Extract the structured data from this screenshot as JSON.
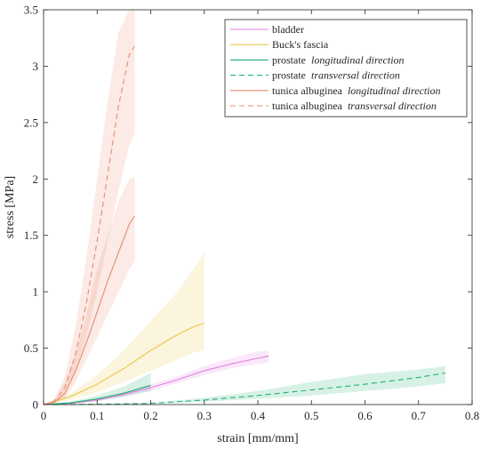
{
  "chart_data": {
    "type": "line",
    "title": "",
    "xlabel": "strain [mm/mm]",
    "ylabel": "stress [MPa]",
    "xlim": [
      0,
      0.8
    ],
    "ylim": [
      0,
      3.5
    ],
    "x_ticks": [
      "0",
      "0.1",
      "0.2",
      "0.3",
      "0.4",
      "0.5",
      "0.6",
      "0.7",
      "0.8"
    ],
    "y_ticks": [
      "0",
      "0.5",
      "1",
      "1.5",
      "2",
      "2.5",
      "3",
      "3.5"
    ],
    "grid": false,
    "legend_position": "top-right",
    "series": [
      {
        "name": "bladder",
        "name_main": "bladder",
        "name_italic": "",
        "color": "#e37fe3",
        "dash": "solid",
        "x": [
          0,
          0.05,
          0.1,
          0.15,
          0.2,
          0.25,
          0.3,
          0.35,
          0.4,
          0.42
        ],
        "y": [
          0,
          0.01,
          0.04,
          0.09,
          0.15,
          0.22,
          0.3,
          0.36,
          0.41,
          0.43
        ],
        "band_lower": [
          0,
          0.005,
          0.03,
          0.07,
          0.12,
          0.19,
          0.26,
          0.32,
          0.36,
          0.37
        ],
        "band_upper": [
          0,
          0.015,
          0.05,
          0.11,
          0.18,
          0.25,
          0.34,
          0.41,
          0.47,
          0.48
        ]
      },
      {
        "name": "Buck's fascia",
        "name_main": "Buck's fascia",
        "name_italic": "",
        "color": "#e9c744",
        "dash": "solid",
        "x": [
          0,
          0.05,
          0.1,
          0.15,
          0.2,
          0.25,
          0.28,
          0.3
        ],
        "y": [
          0,
          0.07,
          0.18,
          0.32,
          0.48,
          0.62,
          0.69,
          0.72
        ],
        "band_lower": [
          0,
          0.04,
          0.11,
          0.2,
          0.3,
          0.4,
          0.46,
          0.48
        ],
        "band_upper": [
          0,
          0.1,
          0.26,
          0.48,
          0.74,
          1.0,
          1.2,
          1.35
        ]
      },
      {
        "name": "prostate longitudinal direction",
        "name_main": "prostate",
        "name_italic": "longitudinal direction",
        "color": "#21b072",
        "dash": "solid",
        "x": [
          0,
          0.05,
          0.1,
          0.15,
          0.2
        ],
        "y": [
          0,
          0.015,
          0.05,
          0.1,
          0.17
        ],
        "band_lower": [
          0,
          0.005,
          0.03,
          0.07,
          0.12
        ],
        "band_upper": [
          0,
          0.025,
          0.08,
          0.16,
          0.28
        ]
      },
      {
        "name": "prostate transversal direction",
        "name_main": "prostate",
        "name_italic": "transversal direction",
        "color": "#21b072",
        "dash": "dashed",
        "x": [
          0,
          0.1,
          0.2,
          0.3,
          0.4,
          0.5,
          0.6,
          0.7,
          0.75
        ],
        "y": [
          0,
          0.003,
          0.01,
          0.04,
          0.08,
          0.13,
          0.18,
          0.24,
          0.28
        ],
        "band_lower": [
          0,
          0.002,
          0.006,
          0.025,
          0.05,
          0.08,
          0.12,
          0.16,
          0.19
        ],
        "band_upper": [
          0,
          0.005,
          0.015,
          0.06,
          0.12,
          0.2,
          0.27,
          0.31,
          0.34
        ]
      },
      {
        "name": "tunica albuginea longitudinal direction",
        "name_main": "tunica albuginea",
        "name_italic": "longitudinal direction",
        "color": "#e88b6f",
        "dash": "solid",
        "x": [
          0,
          0.02,
          0.04,
          0.06,
          0.08,
          0.1,
          0.12,
          0.14,
          0.16,
          0.17
        ],
        "y": [
          0,
          0.02,
          0.1,
          0.3,
          0.55,
          0.82,
          1.1,
          1.35,
          1.6,
          1.67
        ],
        "band_lower": [
          0,
          0.01,
          0.05,
          0.2,
          0.4,
          0.6,
          0.8,
          1.0,
          1.2,
          1.27
        ],
        "band_upper": [
          0,
          0.03,
          0.2,
          0.45,
          0.8,
          1.2,
          1.5,
          1.8,
          2.0,
          2.02
        ]
      },
      {
        "name": "tunica albuginea transversal direction",
        "name_main": "tunica albuginea",
        "name_italic": "transversal direction",
        "color": "#e88b6f",
        "dash": "dashed",
        "x": [
          0,
          0.02,
          0.04,
          0.06,
          0.08,
          0.1,
          0.12,
          0.14,
          0.16,
          0.17
        ],
        "y": [
          0,
          0.03,
          0.15,
          0.45,
          0.9,
          1.45,
          2.05,
          2.65,
          3.1,
          3.18
        ],
        "band_lower": [
          0,
          0.015,
          0.08,
          0.3,
          0.6,
          1.0,
          1.45,
          1.9,
          2.3,
          2.4
        ],
        "band_upper": [
          0,
          0.05,
          0.25,
          0.7,
          1.3,
          2.0,
          2.7,
          3.3,
          3.5,
          3.5
        ]
      }
    ]
  }
}
